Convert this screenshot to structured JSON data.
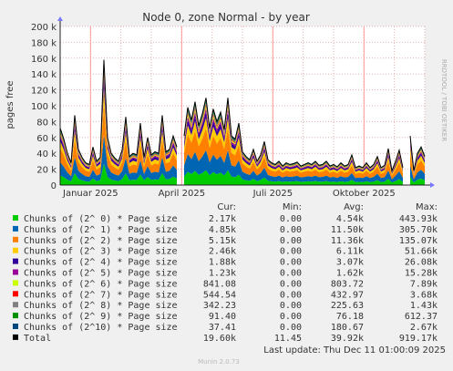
{
  "chart_data": {
    "type": "area",
    "title": "Node 0, zone Normal - by year",
    "ylabel": "pages free",
    "side_label": "RRDTOOL / TOBI OETIKER",
    "ylim": [
      0,
      200000
    ],
    "y_ticks": [
      "0",
      "20 k",
      "40 k",
      "60 k",
      "80 k",
      "100 k",
      "120 k",
      "140 k",
      "160 k",
      "180 k",
      "200 k"
    ],
    "x_ticks": [
      "Januar 2025",
      "April 2025",
      "Juli 2025",
      "Oktober 2025"
    ],
    "grid": true,
    "legend_headers": [
      "Cur:",
      "Min:",
      "Avg:",
      "Max:"
    ],
    "series": [
      {
        "name": "Chunks of (2^ 0) * Page size",
        "color": "#00cc00",
        "cur": "2.17k",
        "min": "0.00",
        "avg": "4.54k",
        "max": "443.93k",
        "share": 0.17
      },
      {
        "name": "Chunks of (2^ 1) * Page size",
        "color": "#0066b3",
        "cur": "4.85k",
        "min": "0.00",
        "avg": "11.50k",
        "max": "305.70k",
        "share": 0.23
      },
      {
        "name": "Chunks of (2^ 2) * Page size",
        "color": "#ff8000",
        "cur": "5.15k",
        "min": "0.00",
        "avg": "11.36k",
        "max": "135.07k",
        "share": 0.25
      },
      {
        "name": "Chunks of (2^ 3) * Page size",
        "color": "#ffcc00",
        "cur": "2.46k",
        "min": "0.00",
        "avg": "6.11k",
        "max": "51.66k",
        "share": 0.12
      },
      {
        "name": "Chunks of (2^ 4) * Page size",
        "color": "#330099",
        "cur": "1.88k",
        "min": "0.00",
        "avg": "3.07k",
        "max": "26.08k",
        "share": 0.07
      },
      {
        "name": "Chunks of (2^ 5) * Page size",
        "color": "#990099",
        "cur": "1.23k",
        "min": "0.00",
        "avg": "1.62k",
        "max": "15.28k",
        "share": 0.04
      },
      {
        "name": "Chunks of (2^ 6) * Page size",
        "color": "#ccff00",
        "cur": "841.08",
        "min": "0.00",
        "avg": "803.72",
        "max": "7.89k",
        "share": 0.03
      },
      {
        "name": "Chunks of (2^ 7) * Page size",
        "color": "#ff0000",
        "cur": "544.54",
        "min": "0.00",
        "avg": "432.97",
        "max": "3.68k",
        "share": 0.02
      },
      {
        "name": "Chunks of (2^ 8) * Page size",
        "color": "#808080",
        "cur": "342.23",
        "min": "0.00",
        "avg": "225.63",
        "max": "1.43k",
        "share": 0.02
      },
      {
        "name": "Chunks of (2^ 9) * Page size",
        "color": "#008f00",
        "cur": "91.40",
        "min": "0.00",
        "avg": "76.18",
        "max": "612.37",
        "share": 0.02
      },
      {
        "name": "Chunks of (2^10) * Page size",
        "color": "#00487d",
        "cur": "37.41",
        "min": "0.00",
        "avg": "180.67",
        "max": "2.67k",
        "share": 0.03
      },
      {
        "name": "Total",
        "color": "#000000",
        "cur": "19.60k",
        "min": "11.45",
        "avg": "39.92k",
        "max": "919.17k"
      }
    ],
    "total_profile": [
      [
        0.0,
        72000
      ],
      [
        0.01,
        58000
      ],
      [
        0.02,
        40000
      ],
      [
        0.03,
        28000
      ],
      [
        0.04,
        88000
      ],
      [
        0.05,
        45000
      ],
      [
        0.06,
        35000
      ],
      [
        0.07,
        28000
      ],
      [
        0.08,
        26000
      ],
      [
        0.09,
        48000
      ],
      [
        0.1,
        30000
      ],
      [
        0.11,
        35000
      ],
      [
        0.12,
        158000
      ],
      [
        0.13,
        60000
      ],
      [
        0.14,
        40000
      ],
      [
        0.15,
        34000
      ],
      [
        0.16,
        30000
      ],
      [
        0.17,
        44000
      ],
      [
        0.18,
        86000
      ],
      [
        0.19,
        36000
      ],
      [
        0.2,
        40000
      ],
      [
        0.21,
        38000
      ],
      [
        0.22,
        78000
      ],
      [
        0.23,
        35000
      ],
      [
        0.24,
        60000
      ],
      [
        0.25,
        38000
      ],
      [
        0.26,
        42000
      ],
      [
        0.27,
        40000
      ],
      [
        0.28,
        88000
      ],
      [
        0.29,
        42000
      ],
      [
        0.3,
        45000
      ],
      [
        0.31,
        62000
      ],
      [
        0.32,
        48000
      ],
      [
        0.33,
        null
      ],
      [
        0.34,
        62000
      ],
      [
        0.35,
        98000
      ],
      [
        0.36,
        82000
      ],
      [
        0.37,
        105000
      ],
      [
        0.38,
        75000
      ],
      [
        0.39,
        90000
      ],
      [
        0.4,
        110000
      ],
      [
        0.41,
        72000
      ],
      [
        0.42,
        96000
      ],
      [
        0.43,
        80000
      ],
      [
        0.44,
        92000
      ],
      [
        0.45,
        70000
      ],
      [
        0.46,
        110000
      ],
      [
        0.47,
        62000
      ],
      [
        0.48,
        58000
      ],
      [
        0.49,
        78000
      ],
      [
        0.5,
        42000
      ],
      [
        0.51,
        36000
      ],
      [
        0.52,
        32000
      ],
      [
        0.53,
        45000
      ],
      [
        0.54,
        30000
      ],
      [
        0.55,
        38000
      ],
      [
        0.56,
        55000
      ],
      [
        0.57,
        32000
      ],
      [
        0.58,
        28000
      ],
      [
        0.59,
        26000
      ],
      [
        0.6,
        30000
      ],
      [
        0.61,
        24000
      ],
      [
        0.62,
        28000
      ],
      [
        0.63,
        26000
      ],
      [
        0.64,
        27000
      ],
      [
        0.65,
        29000
      ],
      [
        0.66,
        24000
      ],
      [
        0.67,
        26000
      ],
      [
        0.68,
        28000
      ],
      [
        0.69,
        26000
      ],
      [
        0.7,
        30000
      ],
      [
        0.71,
        25000
      ],
      [
        0.72,
        26000
      ],
      [
        0.73,
        30000
      ],
      [
        0.74,
        24000
      ],
      [
        0.75,
        26000
      ],
      [
        0.76,
        23000
      ],
      [
        0.77,
        28000
      ],
      [
        0.78,
        24000
      ],
      [
        0.79,
        26000
      ],
      [
        0.8,
        38000
      ],
      [
        0.81,
        22000
      ],
      [
        0.82,
        24000
      ],
      [
        0.83,
        22000
      ],
      [
        0.84,
        28000
      ],
      [
        0.85,
        22000
      ],
      [
        0.86,
        26000
      ],
      [
        0.87,
        36000
      ],
      [
        0.88,
        22000
      ],
      [
        0.89,
        25000
      ],
      [
        0.9,
        46000
      ],
      [
        0.91,
        18000
      ],
      [
        0.92,
        30000
      ],
      [
        0.93,
        44000
      ],
      [
        0.94,
        22000
      ],
      [
        0.95,
        null
      ],
      [
        0.96,
        62000
      ],
      [
        0.97,
        18000
      ],
      [
        0.98,
        40000
      ],
      [
        0.99,
        48000
      ],
      [
        1.0,
        36000
      ]
    ]
  },
  "footer": {
    "last_update": "Last update: Thu Dec 11 01:00:09 2025",
    "munin": "Munin 2.0.73"
  }
}
